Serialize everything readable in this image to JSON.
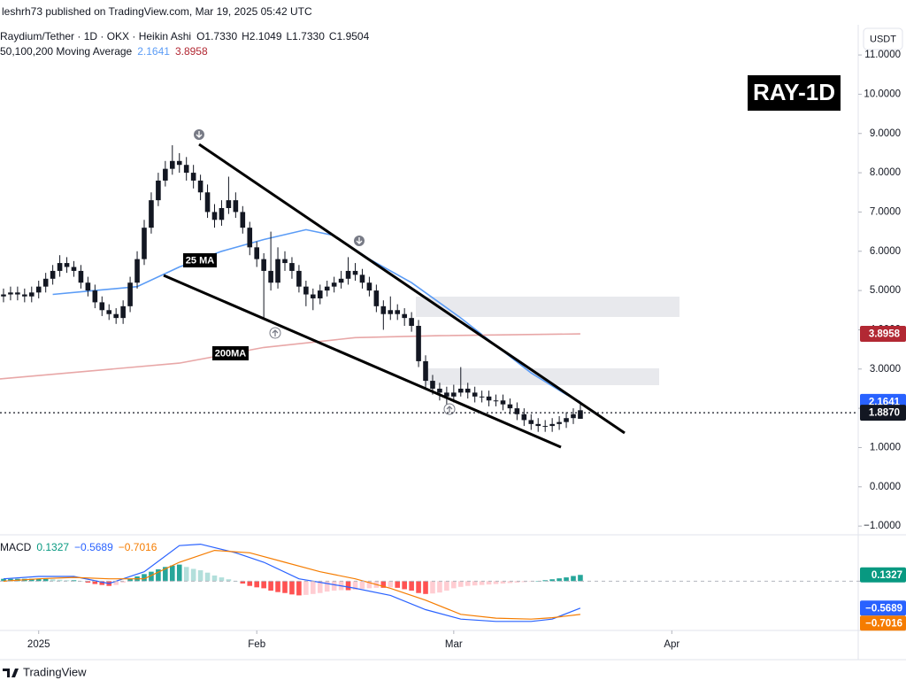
{
  "header": {
    "publisher": "leshrh73 published on TradingView.com, Mar 19, 2025 05:42 UTC",
    "logo": "TradingView"
  },
  "chart_data": {
    "type": "candlestick",
    "legend": {
      "symbol": "Raydium/Tether · 1D · OKX · Heikin Ashi",
      "ohlc": [
        "O1.7330",
        "H2.1049",
        "L1.7330",
        "C1.9504"
      ],
      "ma_title": "50,100,200 Moving Average"
    },
    "badge": "RAY-1D",
    "currency": "USDT",
    "annotations": [
      "25 MA",
      "200MA"
    ],
    "candle_color": "#131722",
    "open": [
      4.85,
      4.9,
      4.95,
      4.9,
      4.85,
      4.95,
      5.1,
      5.3,
      5.5,
      5.7,
      5.6,
      5.5,
      5.2,
      5.0,
      4.7,
      4.5,
      4.4,
      4.3,
      4.6,
      5.2,
      5.8,
      6.6,
      7.3,
      7.8,
      8.1,
      8.3,
      8.2,
      8.0,
      7.8,
      7.5,
      7.0,
      6.8,
      7.1,
      7.3,
      7.0,
      6.6,
      6.1,
      5.8,
      5.5,
      5.2,
      5.8,
      5.7,
      5.5,
      5.1,
      4.9,
      4.8,
      5.0,
      5.1,
      5.2,
      5.3,
      5.5,
      5.4,
      5.2,
      5.0,
      4.6,
      4.4,
      4.5,
      4.4,
      4.3,
      4.1,
      3.2,
      2.7,
      2.5,
      2.4,
      2.3,
      2.4,
      2.5,
      2.4,
      2.3,
      2.3,
      2.2,
      2.2,
      2.1,
      2.0,
      1.85,
      1.7,
      1.6,
      1.55,
      1.55,
      1.6,
      1.65,
      1.75,
      1.733
    ],
    "high": [
      5.05,
      5.1,
      5.1,
      5.05,
      5.1,
      5.25,
      5.45,
      5.65,
      5.9,
      5.85,
      5.75,
      5.65,
      5.35,
      5.15,
      4.85,
      4.65,
      4.55,
      4.75,
      5.35,
      6.0,
      6.8,
      7.5,
      8.0,
      8.3,
      8.7,
      8.5,
      8.4,
      8.2,
      7.95,
      7.7,
      7.2,
      7.3,
      7.9,
      7.5,
      7.15,
      6.75,
      6.25,
      5.95,
      6.5,
      6.1,
      6.0,
      5.85,
      5.65,
      5.25,
      5.05,
      5.15,
      5.25,
      5.35,
      5.5,
      5.85,
      5.7,
      5.55,
      5.35,
      5.15,
      4.75,
      4.85,
      4.65,
      4.55,
      4.45,
      4.25,
      3.35,
      2.85,
      2.65,
      2.55,
      2.6,
      3.05,
      2.65,
      2.55,
      2.45,
      2.45,
      2.35,
      2.35,
      2.25,
      2.15,
      2.0,
      1.85,
      1.75,
      1.7,
      1.75,
      1.8,
      1.9,
      2.0,
      2.1049
    ],
    "low": [
      4.7,
      4.75,
      4.75,
      4.7,
      4.7,
      4.8,
      4.95,
      5.15,
      5.35,
      5.45,
      5.35,
      5.05,
      4.85,
      4.55,
      4.35,
      4.25,
      4.15,
      4.15,
      4.45,
      5.05,
      5.65,
      6.45,
      7.15,
      7.65,
      7.95,
      8.0,
      7.8,
      7.6,
      7.3,
      6.85,
      6.6,
      6.65,
      6.95,
      6.85,
      6.45,
      5.9,
      5.6,
      4.3,
      5.0,
      5.05,
      5.5,
      5.3,
      4.95,
      4.6,
      4.5,
      4.65,
      4.85,
      4.95,
      5.05,
      5.15,
      5.25,
      5.05,
      4.85,
      4.45,
      4.0,
      4.25,
      4.25,
      4.1,
      3.95,
      3.05,
      2.5,
      2.35,
      2.2,
      2.1,
      2.15,
      2.3,
      2.25,
      2.15,
      2.15,
      2.05,
      2.05,
      1.95,
      1.85,
      1.7,
      1.55,
      1.45,
      1.4,
      1.4,
      1.4,
      1.45,
      1.5,
      1.6,
      1.733
    ],
    "close": [
      4.9,
      4.95,
      4.9,
      4.85,
      4.95,
      5.1,
      5.3,
      5.5,
      5.7,
      5.6,
      5.5,
      5.2,
      5.0,
      4.7,
      4.5,
      4.4,
      4.3,
      4.6,
      5.2,
      5.8,
      6.6,
      7.3,
      7.8,
      8.1,
      8.3,
      8.2,
      8.0,
      7.8,
      7.5,
      7.0,
      6.8,
      7.1,
      7.3,
      7.0,
      6.6,
      6.1,
      5.8,
      5.5,
      5.2,
      5.8,
      5.7,
      5.5,
      5.1,
      4.9,
      4.8,
      5.0,
      5.1,
      5.2,
      5.3,
      5.5,
      5.4,
      5.2,
      5.0,
      4.6,
      4.4,
      4.5,
      4.4,
      4.3,
      4.1,
      3.2,
      2.7,
      2.5,
      2.4,
      2.3,
      2.4,
      2.5,
      2.4,
      2.3,
      2.3,
      2.2,
      2.2,
      2.1,
      2.0,
      1.85,
      1.7,
      1.6,
      1.55,
      1.55,
      1.6,
      1.65,
      1.75,
      1.85,
      1.9504
    ],
    "series": [
      {
        "color": "#5b9cf6",
        "legend_value": "2.1641",
        "x": [
          7,
          13,
          19,
          25,
          31,
          37,
          43,
          47,
          52,
          58,
          65,
          70,
          75,
          80,
          82
        ],
        "values": [
          4.9,
          5.0,
          5.1,
          5.6,
          6.0,
          6.3,
          6.55,
          6.4,
          5.8,
          5.2,
          4.3,
          3.6,
          2.9,
          2.35,
          2.1641
        ]
      },
      {
        "color": "#e8a7a7",
        "legend_value": "3.8958",
        "legend_color": "#b22833",
        "x": [
          -0.5,
          25,
          37,
          50,
          62,
          82
        ],
        "values": [
          2.75,
          3.15,
          3.55,
          3.8,
          3.85,
          3.8958
        ]
      }
    ],
    "xlim": [
      -0.5,
      121.5
    ],
    "xticks": [
      {
        "value": 5,
        "label": "2025"
      },
      {
        "value": 36,
        "label": "Feb"
      },
      {
        "value": 64,
        "label": "Mar"
      },
      {
        "value": 95,
        "label": "Apr"
      }
    ],
    "ylim": [
      -1.2,
      12.4
    ],
    "yticks": [
      {
        "value": -1,
        "label": "−1.0000"
      },
      {
        "value": 0,
        "label": "0.0000"
      },
      {
        "value": 1,
        "label": "1.0000"
      },
      {
        "value": 2,
        "label": "2.0000"
      },
      {
        "value": 3,
        "label": "3.0000"
      },
      {
        "value": 4,
        "label": "4.0000"
      },
      {
        "value": 5,
        "label": "5.0000"
      },
      {
        "value": 6,
        "label": "6.0000"
      },
      {
        "value": 7,
        "label": "7.0000"
      },
      {
        "value": 8,
        "label": "8.0000"
      },
      {
        "value": 9,
        "label": "9.0000"
      },
      {
        "value": 10,
        "label": "10.0000"
      },
      {
        "value": 11,
        "label": "11.0000"
      }
    ],
    "price_labels": [
      {
        "value": 3.8958,
        "label": "3.8958",
        "color": "#b22833"
      },
      {
        "value": 2.1641,
        "label": "2.1641",
        "color": "#2962ff"
      },
      {
        "value": 1.887,
        "label": "1.8870",
        "color": "#131722",
        "line": "dotted"
      }
    ],
    "macd": {
      "title": "MACD",
      "ylim": [
        -1.04,
        0.96
      ],
      "hist_colors": {
        "up_strong": "#26a69a",
        "up_weak": "#b2dfdb",
        "down_strong": "#ff5252",
        "down_weak": "#ffcdd2"
      },
      "hist": [
        0.05,
        0.05,
        0.05,
        0.05,
        0.05,
        0.05,
        0.05,
        0.04,
        0.03,
        0.02,
        0.02,
        0.0,
        -0.03,
        -0.06,
        -0.08,
        -0.1,
        -0.08,
        -0.03,
        0.05,
        0.1,
        0.15,
        0.2,
        0.25,
        0.3,
        0.33,
        0.35,
        0.3,
        0.26,
        0.23,
        0.18,
        0.12,
        0.08,
        0.04,
        0.0,
        -0.05,
        -0.1,
        -0.13,
        -0.15,
        -0.2,
        -0.23,
        -0.25,
        -0.28,
        -0.3,
        -0.29,
        -0.27,
        -0.25,
        -0.22,
        -0.2,
        -0.19,
        -0.19,
        -0.18,
        -0.16,
        -0.15,
        -0.14,
        -0.14,
        -0.13,
        -0.14,
        -0.17,
        -0.2,
        -0.25,
        -0.27,
        -0.26,
        -0.24,
        -0.2,
        -0.15,
        -0.12,
        -0.1,
        -0.09,
        -0.08,
        -0.07,
        -0.06,
        -0.05,
        -0.04,
        -0.03,
        -0.02,
        -0.01,
        0.0,
        0.02,
        0.04,
        0.06,
        0.08,
        0.11,
        0.1327
      ],
      "lines": [
        {
          "color": "#2962ff",
          "legend_value": "−0.5689",
          "x": [
            0,
            5,
            10,
            15,
            20,
            25,
            28,
            33,
            37,
            42,
            46,
            50,
            55,
            60,
            65,
            70,
            75,
            78,
            82
          ],
          "values": [
            0.05,
            0.1,
            0.1,
            -0.05,
            0.2,
            0.75,
            0.78,
            0.6,
            0.4,
            0.05,
            -0.05,
            -0.15,
            -0.3,
            -0.6,
            -0.8,
            -0.85,
            -0.85,
            -0.8,
            -0.5689
          ]
        },
        {
          "color": "#f57c00",
          "legend_value": "−0.7016",
          "x": [
            0,
            5,
            10,
            15,
            20,
            25,
            30,
            35,
            40,
            45,
            50,
            55,
            60,
            65,
            70,
            75,
            78,
            82
          ],
          "values": [
            0.0,
            0.05,
            0.08,
            0.05,
            0.05,
            0.4,
            0.65,
            0.6,
            0.4,
            0.2,
            0.05,
            -0.15,
            -0.4,
            -0.7,
            -0.78,
            -0.8,
            -0.77,
            -0.7016
          ]
        }
      ],
      "hist_legend_value": "0.1327",
      "price_labels": [
        {
          "value": 0.1327,
          "label": "0.1327",
          "color": "#089981"
        },
        {
          "value": -0.5689,
          "label": "−0.5689",
          "color": "#2962ff"
        },
        {
          "value": -0.7016,
          "label": "−0.7016",
          "color": "#f57c00"
        }
      ]
    }
  }
}
